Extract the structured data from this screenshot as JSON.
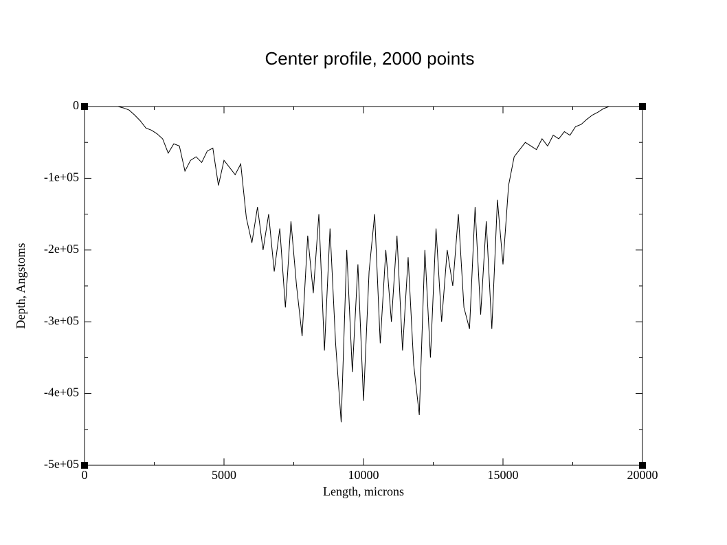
{
  "chart_data": {
    "type": "line",
    "title": "Center profile, 2000 points",
    "x_label": "Length, microns",
    "y_label": "Depth, Angstoms",
    "x": [
      0,
      200,
      400,
      600,
      800,
      1000,
      1200,
      1400,
      1600,
      1800,
      2000,
      2200,
      2400,
      2600,
      2800,
      3000,
      3200,
      3400,
      3600,
      3800,
      4000,
      4200,
      4400,
      4600,
      4800,
      5000,
      5200,
      5400,
      5600,
      5800,
      6000,
      6200,
      6400,
      6600,
      6800,
      7000,
      7200,
      7400,
      7600,
      7800,
      8000,
      8200,
      8400,
      8600,
      8800,
      9000,
      9200,
      9400,
      9600,
      9800,
      10000,
      10200,
      10400,
      10600,
      10800,
      11000,
      11200,
      11400,
      11600,
      11800,
      12000,
      12200,
      12400,
      12600,
      12800,
      13000,
      13200,
      13400,
      13600,
      13800,
      14000,
      14200,
      14400,
      14600,
      14800,
      15000,
      15200,
      15400,
      15600,
      15800,
      16000,
      16200,
      16400,
      16600,
      16800,
      17000,
      17200,
      17400,
      17600,
      17800,
      18000,
      18200,
      18400,
      18600,
      18800,
      19000,
      19200,
      19400,
      19600,
      19800,
      20000
    ],
    "series": [
      {
        "name": "profile",
        "color": "#000000",
        "values": [
          0,
          0,
          0,
          0,
          0,
          0,
          0,
          -2000,
          -5000,
          -12000,
          -20000,
          -30000,
          -33000,
          -38000,
          -45000,
          -65000,
          -52000,
          -55000,
          -90000,
          -75000,
          -70000,
          -78000,
          -62000,
          -58000,
          -110000,
          -75000,
          -85000,
          -95000,
          -80000,
          -155000,
          -190000,
          -140000,
          -200000,
          -150000,
          -230000,
          -170000,
          -280000,
          -160000,
          -250000,
          -320000,
          -180000,
          -260000,
          -150000,
          -340000,
          -170000,
          -330000,
          -440000,
          -200000,
          -370000,
          -220000,
          -410000,
          -230000,
          -150000,
          -330000,
          -200000,
          -300000,
          -180000,
          -340000,
          -210000,
          -360000,
          -430000,
          -200000,
          -350000,
          -170000,
          -300000,
          -200000,
          -250000,
          -150000,
          -280000,
          -310000,
          -140000,
          -290000,
          -160000,
          -310000,
          -130000,
          -220000,
          -110000,
          -70000,
          -60000,
          -50000,
          -55000,
          -60000,
          -45000,
          -55000,
          -40000,
          -45000,
          -35000,
          -40000,
          -28000,
          -25000,
          -18000,
          -12000,
          -8000,
          -3000,
          0,
          0,
          0,
          0,
          0,
          0,
          0
        ]
      }
    ],
    "xlim": [
      0,
      20000
    ],
    "xticks": [
      0,
      5000,
      10000,
      15000,
      20000
    ],
    "xminorticks": [
      2500,
      7500,
      12500,
      17500
    ],
    "ylim": [
      -500000,
      0
    ],
    "yticks": [
      {
        "value": 0,
        "label": "0"
      },
      {
        "value": -100000,
        "label": "-1e+05"
      },
      {
        "value": -200000,
        "label": "-2e+05"
      },
      {
        "value": -300000,
        "label": "-3e+05"
      },
      {
        "value": -400000,
        "label": "-4e+05"
      },
      {
        "value": -500000,
        "label": "-5e+05"
      }
    ],
    "yminorticks": [
      -50000,
      -150000,
      -250000,
      -350000,
      -450000
    ]
  }
}
